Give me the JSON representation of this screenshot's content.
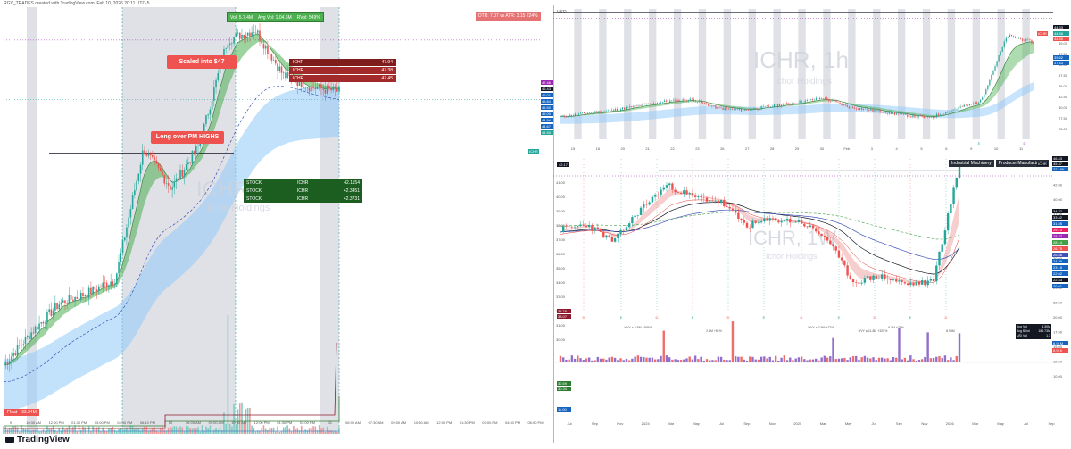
{
  "header": {
    "title": "RGV_TRADES created with TradingView.com, Feb 10, 2026 20:11 UTC-5"
  },
  "footer": {
    "brand": "TradingView",
    "float_label": "Float",
    "float_value": "33.24M"
  },
  "colors": {
    "up": "#26a69a",
    "down": "#ef5350",
    "ribbon_green": "#4caf50",
    "ribbon_red": "#e57373",
    "cloud_blue": "#90caf9",
    "session_gray": "#d1d4dc",
    "annotation_red": "#ef5350",
    "table_dark_red": "#a32a2a",
    "table_green": "#1b5e20"
  },
  "left_panel": {
    "watermark_symbol": "ICHR, 10",
    "watermark_name": "Ichor Holdings",
    "stats_green": [
      "Vol: 5.7.4M",
      "Avg Vol: 1.04.6M",
      "RVol: 549%"
    ],
    "stats_red": "DTR: 7.07 vs ATR: 3.15 224%",
    "callout_scaled": "Scaled into $47",
    "callout_long": "Long over PM HIGHS",
    "sell_table": [
      {
        "symbol": "ICHR",
        "price": "47.94"
      },
      {
        "symbol": "ICHR",
        "price": "47.38"
      },
      {
        "symbol": "ICHR",
        "price": "47.45"
      }
    ],
    "buy_table": [
      {
        "side": "STOCK",
        "symbol": "ICHR",
        "price": "42.1154"
      },
      {
        "side": "STOCK",
        "symbol": "ICHR",
        "price": "42.3451"
      },
      {
        "side": "STOCK",
        "symbol": "ICHR",
        "price": "42.3731"
      }
    ],
    "price_tags": [
      "47.46",
      "46.43",
      "46.01",
      "45.84",
      "45.50",
      "45.00",
      "44.94",
      "44.67",
      "44.50"
    ],
    "ticker_tag": "ICHR",
    "x_ticks": [
      "9",
      "10:30 AM",
      "12:00 PM",
      "01:30 PM",
      "03:00 PM",
      "04:30 PM",
      "06:10 PM",
      "10",
      "06:00 AM",
      "09:00 AM",
      "10:30 AM",
      "12:00 PM",
      "01:30 PM",
      "03:00 PM",
      "11",
      "06:00 AM",
      "07:30 AM",
      "09:00 AM",
      "10:30 AM",
      "12:00 PM",
      "01:30 PM",
      "03:00 PM",
      "04:30 PM",
      "06:00 PM"
    ],
    "session_markers": [
      "E",
      "E",
      "D"
    ]
  },
  "top_right": {
    "watermark_symbol": "ICHR, 1h",
    "watermark_name": "Ichor Holdings",
    "currency": "USD",
    "y_ticks": [
      "50.00",
      "49.00",
      "47.50",
      "42.50",
      "37.50",
      "35.00",
      "32.50",
      "30.00",
      "27.50",
      "25.00"
    ],
    "price_tags": [
      "44.33",
      "44.56",
      "44.50",
      "39.62",
      "37.63"
    ],
    "ticker_tag": "ICHR",
    "x_ticks": [
      "15",
      "16",
      "20",
      "21",
      "22",
      "23",
      "26",
      "27",
      "28",
      "29",
      "30",
      "Feb",
      "3",
      "4",
      "5",
      "6",
      "9",
      "10",
      "11"
    ]
  },
  "bottom_right": {
    "watermark_symbol": "ICHR, 1W",
    "watermark_name": "Ichor Holdings",
    "badges": [
      "Industrial Machinery",
      "Producer Manufacturing"
    ],
    "left_price_tag": "42.17",
    "y_ticks": [
      "45.00",
      "42.50",
      "40.00",
      "37.50",
      "35.00",
      "32.50",
      "30.00",
      "27.50",
      "25.00",
      "22.50",
      "20.00",
      "17.50",
      "15.00",
      "12.50",
      "10.00"
    ],
    "left_y_ticks": [
      "41.00",
      "40.00",
      "39.00",
      "38.00",
      "37.00",
      "36.00",
      "35.00",
      "34.00",
      "33.00",
      "32.00",
      "31.00",
      "30.00"
    ],
    "left_lower_tags": [
      "35.78",
      "33.07",
      "30.59",
      "30.34",
      "11.00"
    ],
    "price_tags": [
      "46.43",
      "45.37",
      "32.19K",
      "34.37",
      "33.42",
      "31.55",
      "29.13",
      "28.37",
      "28.14",
      "26.75",
      "26.68",
      "24.30",
      "23.18",
      "22.02",
      "22.43",
      "20.61"
    ],
    "ticker_tag": "ICHR",
    "volume_tags": [
      "8.91M",
      "8.91K"
    ],
    "volume_annotations": [
      "HVY ● 3.8M +365%",
      "2.8M +81%",
      "HVY ● 2.5M +72%",
      "HVY ● 11.8M +325%",
      "9.3M +75%",
      "8.95M"
    ],
    "x_ticks": [
      "Jul",
      "Sep",
      "Nov",
      "2024",
      "Mar",
      "May",
      "Jul",
      "Sep",
      "Nov",
      "2025",
      "Mar",
      "May",
      "Jul",
      "Sep",
      "Nov",
      "2026",
      "Mar",
      "May",
      "Jul",
      "Sep"
    ],
    "stats_box": [
      {
        "label": "Avg Vol",
        "value": "4.30M"
      },
      {
        "label": "Avg $ Vol",
        "value": "186.73M"
      },
      {
        "label": "U/D Vol",
        "value": "1.3"
      }
    ]
  },
  "chart_data": [
    {
      "type": "line",
      "title": "ICHR, 10",
      "x": [
        "Feb 9 04:00",
        "Feb 9 09:30",
        "Feb 9 12:00",
        "Feb 9 16:00",
        "Feb 10 04:00",
        "Feb 10 06:00",
        "Feb 10 08:30",
        "Feb 10 09:30",
        "Feb 10 10:30",
        "Feb 10 12:00",
        "Feb 10 13:30",
        "Feb 10 15:00",
        "Feb 10 16:00"
      ],
      "series": [
        {
          "name": "ICHR",
          "values": [
            31.6,
            33.2,
            34.6,
            35.1,
            35.8,
            42.1,
            40.2,
            42.3,
            47.4,
            47.9,
            45.7,
            45.1,
            44.9
          ]
        }
      ],
      "ylim": [
        30,
        49
      ],
      "annotations": [
        "Scaled into $47",
        "Long over PM HIGHS"
      ]
    },
    {
      "type": "line",
      "title": "ICHR, 1h",
      "x": [
        "15",
        "16",
        "20",
        "21",
        "22",
        "23",
        "26",
        "27",
        "28",
        "29",
        "30",
        "Feb",
        "3",
        "4",
        "5",
        "6",
        "9",
        "10",
        "11"
      ],
      "series": [
        {
          "name": "ICHR",
          "values": [
            29.2,
            30.0,
            30.6,
            31.5,
            32.4,
            32.8,
            31.0,
            30.6,
            31.4,
            32.2,
            33.1,
            31.2,
            30.5,
            29.6,
            29.0,
            30.8,
            32.5,
            45.9,
            44.5
          ]
        }
      ],
      "ylim": [
        25,
        51
      ]
    },
    {
      "type": "line",
      "title": "ICHR, 1W",
      "x": [
        "Jul",
        "Sep",
        "Nov",
        "2024",
        "Mar",
        "May",
        "Jul",
        "Sep",
        "Nov",
        "2025",
        "Mar",
        "May",
        "Jul",
        "Sep",
        "Nov",
        "2026"
      ],
      "series": [
        {
          "name": "ICHR",
          "values": [
            30.5,
            31.8,
            27.5,
            35.5,
            41.5,
            38.5,
            37.5,
            31.5,
            33.0,
            32.5,
            28.5,
            17.5,
            19.0,
            17.0,
            17.5,
            46.4
          ]
        }
      ],
      "ylim": [
        10,
        48
      ]
    }
  ]
}
